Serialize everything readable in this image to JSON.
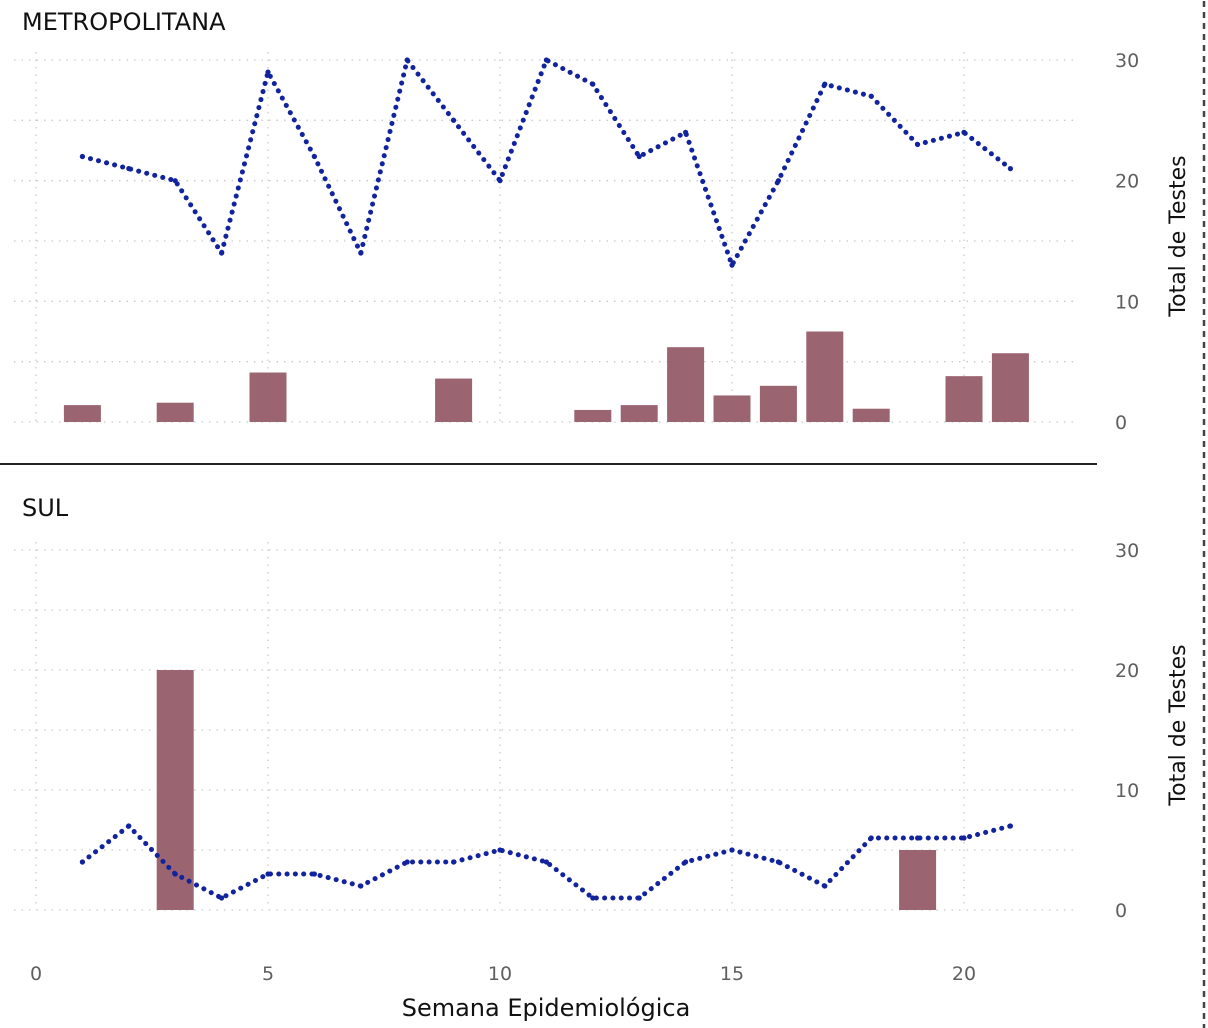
{
  "chart_data": [
    {
      "type": "bar+line",
      "title": "METROPOLITANA",
      "ylabel": "Total de Testes",
      "ylim": [
        0,
        30
      ],
      "yticks": [
        0,
        10,
        20,
        30
      ],
      "xlim": [
        0,
        23
      ],
      "bars": {
        "x": [
          1,
          3,
          5,
          9,
          12,
          13,
          14,
          15,
          16,
          17,
          18,
          20,
          21
        ],
        "values": [
          1.4,
          1.6,
          4.1,
          3.6,
          1.0,
          1.4,
          6.2,
          2.2,
          3.0,
          7.5,
          1.1,
          3.8,
          5.7
        ],
        "color": "#9b6471"
      },
      "line": {
        "x": [
          1,
          2,
          3,
          4,
          5,
          6,
          7,
          8,
          9,
          10,
          11,
          12,
          13,
          14,
          15,
          16,
          17,
          18,
          19,
          20,
          21
        ],
        "values": [
          22,
          21,
          20,
          14,
          29,
          22,
          14,
          30,
          25,
          20,
          30,
          28,
          22,
          24,
          13,
          20,
          28,
          27,
          23,
          24,
          21
        ],
        "color": "#12239e"
      }
    },
    {
      "type": "bar+line",
      "title": "SUL",
      "ylabel": "Total de Testes",
      "ylim": [
        0,
        30
      ],
      "yticks": [
        0,
        10,
        20,
        30
      ],
      "xlim": [
        0,
        23
      ],
      "bars": {
        "x": [
          3,
          19
        ],
        "values": [
          20,
          5
        ],
        "color": "#9b6471"
      },
      "line": {
        "x": [
          1,
          2,
          3,
          4,
          5,
          6,
          7,
          8,
          9,
          10,
          11,
          12,
          13,
          14,
          15,
          16,
          17,
          18,
          19,
          20,
          21
        ],
        "values": [
          4,
          7,
          3,
          1,
          3,
          3,
          2,
          4,
          4,
          5,
          4,
          1,
          1,
          4,
          5,
          4,
          2,
          6,
          6,
          6,
          7
        ],
        "color": "#12239e"
      }
    }
  ],
  "xaxis": {
    "label": "Semana Epidemiológica",
    "ticks": [
      0,
      5,
      10,
      15,
      20
    ]
  }
}
